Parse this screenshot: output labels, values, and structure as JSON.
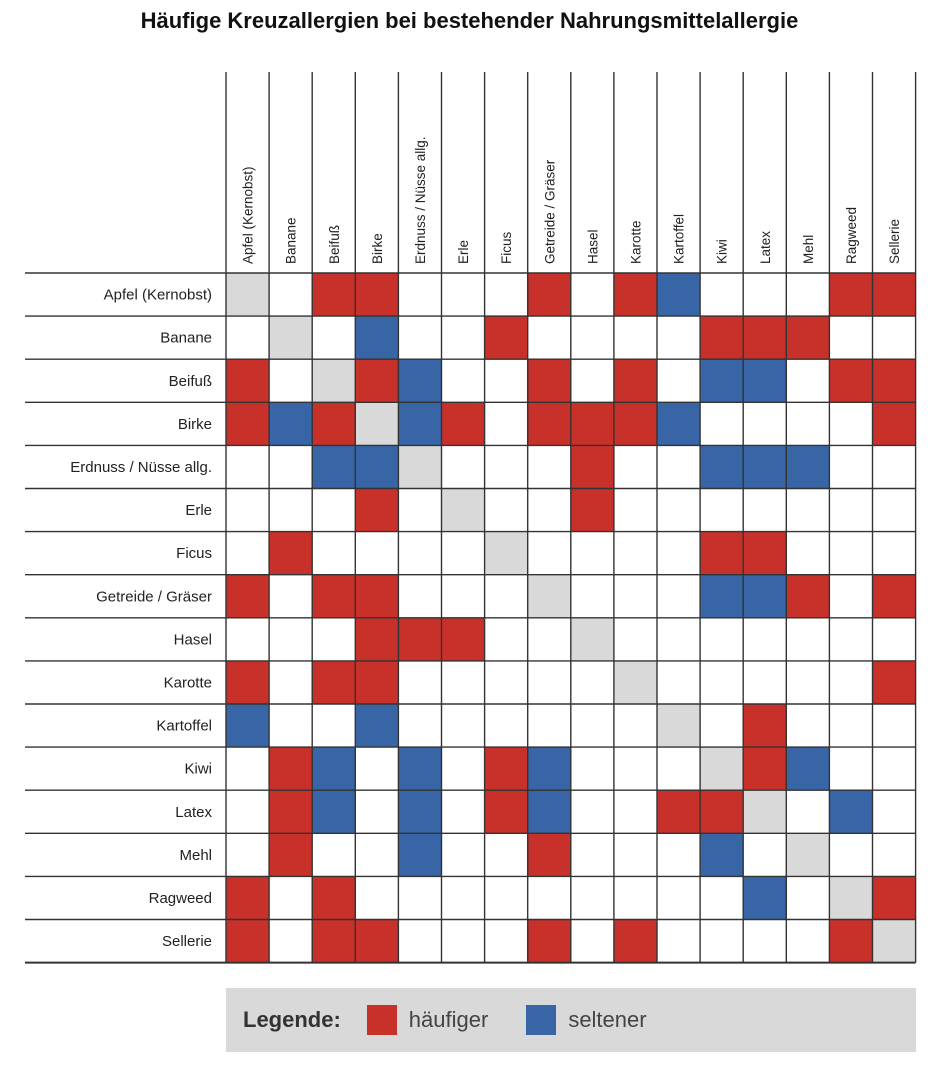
{
  "chart_data": {
    "type": "heatmap",
    "title": "Häufige Kreuzallergien bei bestehender Nahrungsmittelallergie",
    "columns": [
      "Apfel (Kernobst)",
      "Banane",
      "Beifuß",
      "Birke",
      "Erdnuss / Nüsse allg.",
      "Erle",
      "Ficus",
      "Getreide / Gräser",
      "Hasel",
      "Karotte",
      "Kartoffel",
      "Kiwi",
      "Latex",
      "Mehl",
      "Ragweed",
      "Sellerie"
    ],
    "rows": [
      "Apfel (Kernobst)",
      "Banane",
      "Beifuß",
      "Birke",
      "Erdnuss / Nüsse allg.",
      "Erle",
      "Ficus",
      "Getreide / Gräser",
      "Hasel",
      "Karotte",
      "Kartoffel",
      "Kiwi",
      "Latex",
      "Mehl",
      "Ragweed",
      "Sellerie"
    ],
    "value_codes": {
      "0": "keine",
      "1": "häufiger",
      "2": "seltener",
      "3": "diagonal"
    },
    "matrix": [
      [
        3,
        0,
        1,
        1,
        0,
        0,
        0,
        1,
        0,
        1,
        2,
        0,
        0,
        0,
        1,
        1
      ],
      [
        0,
        3,
        0,
        2,
        0,
        0,
        1,
        0,
        0,
        0,
        0,
        1,
        1,
        1,
        0,
        0
      ],
      [
        1,
        0,
        3,
        1,
        2,
        0,
        0,
        1,
        0,
        1,
        0,
        2,
        2,
        0,
        1,
        1
      ],
      [
        1,
        2,
        1,
        3,
        2,
        1,
        0,
        1,
        1,
        1,
        2,
        0,
        0,
        0,
        0,
        1
      ],
      [
        0,
        0,
        2,
        2,
        3,
        0,
        0,
        0,
        1,
        0,
        0,
        2,
        2,
        2,
        0,
        0
      ],
      [
        0,
        0,
        0,
        1,
        0,
        3,
        0,
        0,
        1,
        0,
        0,
        0,
        0,
        0,
        0,
        0
      ],
      [
        0,
        1,
        0,
        0,
        0,
        0,
        3,
        0,
        0,
        0,
        0,
        1,
        1,
        0,
        0,
        0
      ],
      [
        1,
        0,
        1,
        1,
        0,
        0,
        0,
        3,
        0,
        0,
        0,
        2,
        2,
        1,
        0,
        1
      ],
      [
        0,
        0,
        0,
        1,
        1,
        1,
        0,
        0,
        3,
        0,
        0,
        0,
        0,
        0,
        0,
        0
      ],
      [
        1,
        0,
        1,
        1,
        0,
        0,
        0,
        0,
        0,
        3,
        0,
        0,
        0,
        0,
        0,
        1
      ],
      [
        2,
        0,
        0,
        2,
        0,
        0,
        0,
        0,
        0,
        0,
        3,
        0,
        1,
        0,
        0,
        0
      ],
      [
        0,
        1,
        2,
        0,
        2,
        0,
        1,
        2,
        0,
        0,
        0,
        3,
        1,
        2,
        0,
        0
      ],
      [
        0,
        1,
        2,
        0,
        2,
        0,
        1,
        2,
        0,
        0,
        1,
        1,
        3,
        0,
        2,
        0
      ],
      [
        0,
        1,
        0,
        0,
        2,
        0,
        0,
        1,
        0,
        0,
        0,
        2,
        0,
        3,
        0,
        0
      ],
      [
        1,
        0,
        1,
        0,
        0,
        0,
        0,
        0,
        0,
        0,
        0,
        0,
        2,
        0,
        3,
        1
      ],
      [
        1,
        0,
        1,
        1,
        0,
        0,
        0,
        1,
        0,
        1,
        0,
        0,
        0,
        0,
        1,
        3
      ]
    ],
    "legend": {
      "title": "Legende:",
      "items": [
        {
          "label": "häufiger",
          "color": "#c8302a"
        },
        {
          "label": "seltener",
          "color": "#3765a6"
        }
      ]
    }
  },
  "colors": {
    "haeufiger": "#c8302a",
    "seltener": "#3765a6",
    "diagonal": "#d9d9d9",
    "grid": "#333333",
    "legend_bg": "#d9d9d9"
  }
}
